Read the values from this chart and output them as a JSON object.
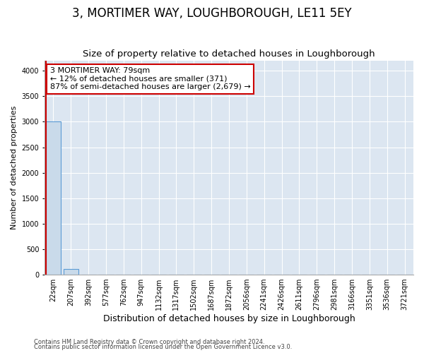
{
  "title": "3, MORTIMER WAY, LOUGHBOROUGH, LE11 5EY",
  "subtitle": "Size of property relative to detached houses in Loughborough",
  "xlabel": "Distribution of detached houses by size in Loughborough",
  "ylabel": "Number of detached properties",
  "categories": [
    "22sqm",
    "207sqm",
    "392sqm",
    "577sqm",
    "762sqm",
    "947sqm",
    "1132sqm",
    "1317sqm",
    "1502sqm",
    "1687sqm",
    "1872sqm",
    "2056sqm",
    "2241sqm",
    "2426sqm",
    "2611sqm",
    "2796sqm",
    "2981sqm",
    "3166sqm",
    "3351sqm",
    "3536sqm",
    "3721sqm"
  ],
  "values": [
    3000,
    100,
    0,
    0,
    0,
    0,
    0,
    0,
    0,
    0,
    0,
    0,
    0,
    0,
    0,
    0,
    0,
    0,
    0,
    0,
    0
  ],
  "bar_color": "#c9daea",
  "bar_edge_color": "#5b9bd5",
  "annotation_box_color": "#ffffff",
  "annotation_border_color": "#cc0000",
  "annotation_title": "3 MORTIMER WAY: 79sqm",
  "annotation_line1": "← 12% of detached houses are smaller (371)",
  "annotation_line2": "87% of semi-detached houses are larger (2,679) →",
  "ylim": [
    0,
    4200
  ],
  "yticks": [
    0,
    500,
    1000,
    1500,
    2000,
    2500,
    3000,
    3500,
    4000
  ],
  "footer1": "Contains HM Land Registry data © Crown copyright and database right 2024.",
  "footer2": "Contains public sector information licensed under the Open Government Licence v3.0.",
  "plot_bg_color": "#dce6f1",
  "title_fontsize": 12,
  "subtitle_fontsize": 9.5,
  "tick_fontsize": 7,
  "ylabel_fontsize": 8,
  "xlabel_fontsize": 9,
  "annotation_fontsize": 8,
  "footer_fontsize": 6
}
